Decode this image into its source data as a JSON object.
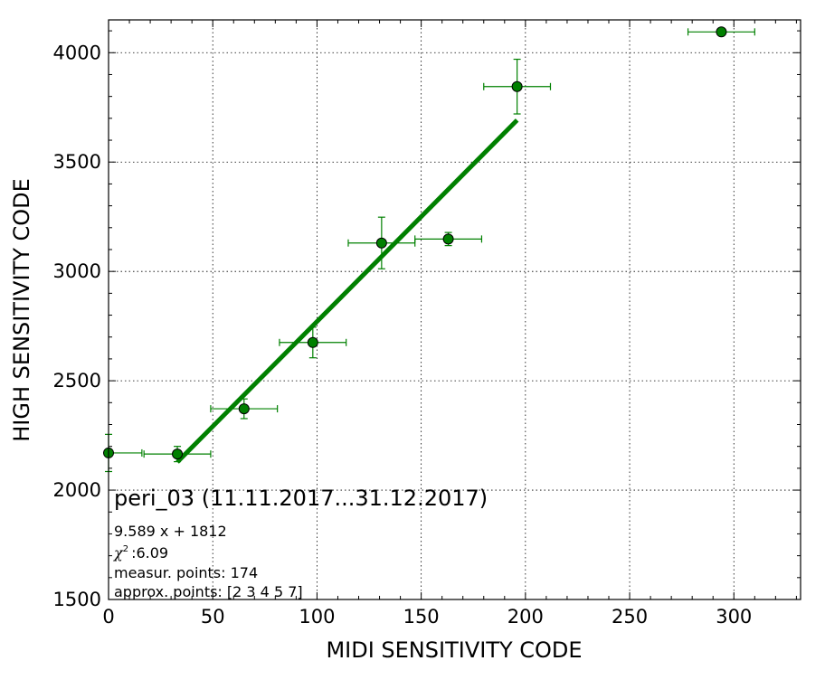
{
  "chart_data": {
    "type": "scatter",
    "title": "",
    "xlabel": "MIDI SENSITIVITY CODE",
    "ylabel": "HIGH SENSITIVITY CODE",
    "xlim": [
      0,
      332
    ],
    "ylim": [
      1500,
      4150
    ],
    "xticks": [
      0,
      50,
      100,
      150,
      200,
      250,
      300
    ],
    "yticks": [
      1500,
      2000,
      2500,
      3000,
      3500,
      4000
    ],
    "grid": true,
    "colors": {
      "series": "#008000",
      "marker_fill": "#008000",
      "marker_edge": "#000000"
    },
    "points": [
      {
        "x": 0,
        "y": 2170,
        "xerr": 16,
        "yerr": 85
      },
      {
        "x": 33,
        "y": 2165,
        "xerr": 16,
        "yerr": 35
      },
      {
        "x": 65,
        "y": 2372,
        "xerr": 16,
        "yerr": 45
      },
      {
        "x": 98,
        "y": 2675,
        "xerr": 16,
        "yerr": 70
      },
      {
        "x": 131,
        "y": 3130,
        "xerr": 16,
        "yerr": 118
      },
      {
        "x": 163,
        "y": 3148,
        "xerr": 16,
        "yerr": 30
      },
      {
        "x": 196,
        "y": 3845,
        "xerr": 16,
        "yerr": 125
      },
      {
        "x": 294,
        "y": 4095,
        "xerr": 16,
        "yerr": 0
      }
    ],
    "fit_line": {
      "slope": 9.589,
      "intercept": 1812,
      "x_range": [
        33,
        196
      ]
    },
    "annotations": {
      "label": "peri_03 (11.11.2017...31.12.2017)",
      "equation": "9.589 x + 1812",
      "chi_symbol": "χ",
      "chi_sup": "2",
      "chi_value": ":6.09",
      "measur": "measur. points: 174",
      "approx": "approx. points: [2 3 4 5 7]"
    }
  }
}
